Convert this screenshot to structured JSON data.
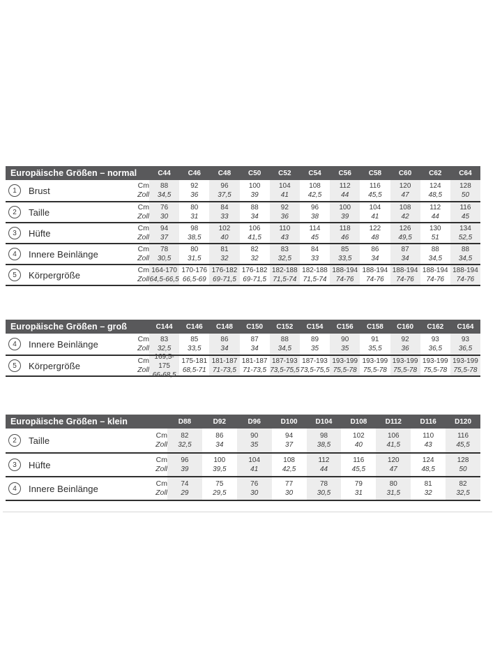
{
  "colors": {
    "header_bg": "#59595b",
    "header_text": "#ffffff",
    "band": "#ededed",
    "rule": "#2f2f2f",
    "text": "#3a3a3a"
  },
  "unit_labels": {
    "cm": "Cm",
    "zoll": "Zoll"
  },
  "tables": [
    {
      "name": "size-table-normal",
      "title": "Europäische Größen – normal",
      "columns": [
        "C44",
        "C46",
        "C48",
        "C50",
        "C52",
        "C54",
        "C56",
        "C58",
        "C60",
        "C62",
        "C64"
      ],
      "rows": [
        {
          "num": "1",
          "label": "Brust",
          "cm": [
            "88",
            "92",
            "96",
            "100",
            "104",
            "108",
            "112",
            "116",
            "120",
            "124",
            "128"
          ],
          "zoll": [
            "34,5",
            "36",
            "37,5",
            "39",
            "41",
            "42,5",
            "44",
            "45,5",
            "47",
            "48,5",
            "50"
          ]
        },
        {
          "num": "2",
          "label": "Taille",
          "cm": [
            "76",
            "80",
            "84",
            "88",
            "92",
            "96",
            "100",
            "104",
            "108",
            "112",
            "116"
          ],
          "zoll": [
            "30",
            "31",
            "33",
            "34",
            "36",
            "38",
            "39",
            "41",
            "42",
            "44",
            "45"
          ]
        },
        {
          "num": "3",
          "label": "Hüfte",
          "cm": [
            "94",
            "98",
            "102",
            "106",
            "110",
            "114",
            "118",
            "122",
            "126",
            "130",
            "134"
          ],
          "zoll": [
            "37",
            "38,5",
            "40",
            "41,5",
            "43",
            "45",
            "46",
            "48",
            "49,5",
            "51",
            "52,5"
          ]
        },
        {
          "num": "4",
          "label": "Innere Beinlänge",
          "cm": [
            "78",
            "80",
            "81",
            "82",
            "83",
            "84",
            "85",
            "86",
            "87",
            "88",
            "88"
          ],
          "zoll": [
            "30,5",
            "31,5",
            "32",
            "32",
            "32,5",
            "33",
            "33,5",
            "34",
            "34",
            "34,5",
            "34,5"
          ]
        },
        {
          "num": "5",
          "label": "Körpergröße",
          "cm": [
            "164-170",
            "170-176",
            "176-182",
            "176-182",
            "182-188",
            "182-188",
            "188-194",
            "188-194",
            "188-194",
            "188-194",
            "188-194"
          ],
          "zoll": [
            "64,5-66,5",
            "66,5-69",
            "69-71,5",
            "69-71,5",
            "71,5-74",
            "71,5-74",
            "74-76",
            "74-76",
            "74-76",
            "74-76",
            "74-76"
          ]
        }
      ]
    },
    {
      "name": "size-table-gross",
      "title": "Europäische Größen – groß",
      "columns": [
        "C144",
        "C146",
        "C148",
        "C150",
        "C152",
        "C154",
        "C156",
        "C158",
        "C160",
        "C162",
        "C164"
      ],
      "rows": [
        {
          "num": "4",
          "label": "Innere Beinlänge",
          "cm": [
            "83",
            "85",
            "86",
            "87",
            "88",
            "89",
            "90",
            "91",
            "92",
            "93",
            "93"
          ],
          "zoll": [
            "32,5",
            "33,5",
            "34",
            "34",
            "34,5",
            "35",
            "35",
            "35,5",
            "36",
            "36,5",
            "36,5"
          ]
        },
        {
          "num": "5",
          "label": "Körpergröße",
          "cm": [
            "169,5-175",
            "175-181",
            "181-187",
            "181-187",
            "187-193",
            "187-193",
            "193-199",
            "193-199",
            "193-199",
            "193-199",
            "193-199"
          ],
          "zoll": [
            "66-68,5",
            "68,5-71",
            "71-73,5",
            "71-73,5",
            "73,5-75,5",
            "73,5-75,5",
            "75,5-78",
            "75,5-78",
            "75,5-78",
            "75,5-78",
            "75,5-78"
          ]
        }
      ]
    },
    {
      "name": "size-table-klein",
      "title": "Europäische Größen – klein",
      "columns": [
        "D88",
        "D92",
        "D96",
        "D100",
        "D104",
        "D108",
        "D112",
        "D116",
        "D120"
      ],
      "rows": [
        {
          "num": "2",
          "label": "Taille",
          "cm": [
            "82",
            "86",
            "90",
            "94",
            "98",
            "102",
            "106",
            "110",
            "116"
          ],
          "zoll": [
            "32,5",
            "34",
            "35",
            "37",
            "38,5",
            "40",
            "41,5",
            "43",
            "45,5"
          ]
        },
        {
          "num": "3",
          "label": "Hüfte",
          "cm": [
            "96",
            "100",
            "104",
            "108",
            "112",
            "116",
            "120",
            "124",
            "128"
          ],
          "zoll": [
            "39",
            "39,5",
            "41",
            "42,5",
            "44",
            "45,5",
            "47",
            "48,5",
            "50"
          ]
        },
        {
          "num": "4",
          "label": "Innere Beinlänge",
          "cm": [
            "74",
            "75",
            "76",
            "77",
            "78",
            "79",
            "80",
            "81",
            "82"
          ],
          "zoll": [
            "29",
            "29,5",
            "30",
            "30",
            "30,5",
            "31",
            "31,5",
            "32",
            "32,5"
          ]
        }
      ]
    }
  ]
}
